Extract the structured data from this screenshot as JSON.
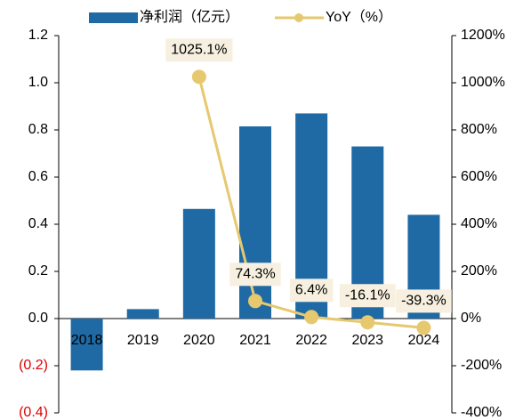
{
  "chart_data": {
    "type": "bar-line",
    "categories": [
      "2018",
      "2019",
      "2020",
      "2021",
      "2022",
      "2023",
      "2024"
    ],
    "series": [
      {
        "name": "净利润（亿元）",
        "type": "bar",
        "color": "#1f6aa5",
        "values": [
          -0.22,
          0.04,
          0.465,
          0.815,
          0.87,
          0.73,
          0.44
        ]
      },
      {
        "name": "YoY（%）",
        "type": "line",
        "axis": "y2",
        "color": "#e6c86e",
        "values": [
          null,
          null,
          1025.1,
          74.3,
          6.4,
          -16.1,
          -39.3
        ],
        "value_labels": [
          null,
          null,
          "1025.1%",
          "74.3%",
          "6.4%",
          "-16.1%",
          "-39.3%"
        ]
      }
    ],
    "ylim": [
      -0.4,
      1.2
    ],
    "yticks": [
      {
        "value": 1.2,
        "label": "1.2"
      },
      {
        "value": 1.0,
        "label": "1.0"
      },
      {
        "value": 0.8,
        "label": "0.8"
      },
      {
        "value": 0.6,
        "label": "0.6"
      },
      {
        "value": 0.4,
        "label": "0.4"
      },
      {
        "value": 0.2,
        "label": "0.2"
      },
      {
        "value": 0,
        "label": "0.0"
      },
      {
        "value": -0.2,
        "label": "(0.2)"
      },
      {
        "value": -0.4,
        "label": "(0.4)"
      }
    ],
    "y2lim": [
      -400,
      1200
    ],
    "y2ticks": [
      {
        "value": 1200,
        "label": "1200%"
      },
      {
        "value": 1000,
        "label": "1000%"
      },
      {
        "value": 800,
        "label": "800%"
      },
      {
        "value": 600,
        "label": "600%"
      },
      {
        "value": 400,
        "label": "400%"
      },
      {
        "value": 200,
        "label": "200%"
      },
      {
        "value": 0,
        "label": "0%"
      },
      {
        "value": -200,
        "label": "-200%"
      },
      {
        "value": -400,
        "label": "-400%"
      }
    ]
  }
}
